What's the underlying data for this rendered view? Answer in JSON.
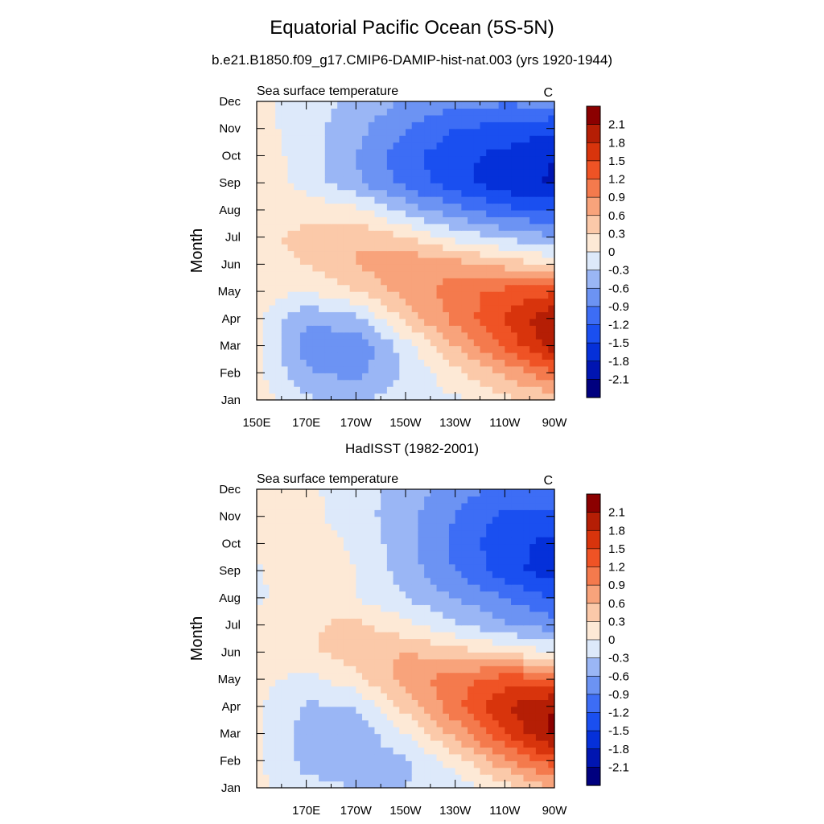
{
  "title": "Equatorial Pacific Ocean (5S-5N)",
  "subtitle": "b.e21.B1850.f09_g17.CMIP6-DAMIP-hist-nat.003 (yrs 1920-1944)",
  "palette": {
    "levels": [
      -2.1,
      -1.8,
      -1.5,
      -1.2,
      -0.9,
      -0.6,
      -0.3,
      0,
      0.3,
      0.6,
      0.9,
      1.2,
      1.5,
      1.8,
      2.1
    ],
    "colors": [
      "#00007f",
      "#0015b1",
      "#0530d9",
      "#1a4ff0",
      "#3d6df5",
      "#6c93f3",
      "#9ab6f5",
      "#c8d8f8",
      "#e7f0fb",
      "#fde4d0",
      "#fbc4a6",
      "#f79b73",
      "#f47343",
      "#ec4a1b",
      "#d52e0a",
      "#b41d05",
      "#8b0000"
    ]
  },
  "chart_data": [
    {
      "type": "heatmap",
      "panel_title": "",
      "left_label": "Sea surface temperature",
      "units": "C",
      "ylabel": "Month",
      "xlabel": "",
      "x_ticks": [
        "150E",
        "170E",
        "170W",
        "150W",
        "130W",
        "110W",
        "90W"
      ],
      "x_lon": [
        150,
        170,
        190,
        210,
        230,
        250,
        270
      ],
      "xlim": [
        150,
        270
      ],
      "y_ticks": [
        "Jan",
        "Feb",
        "Mar",
        "Apr",
        "May",
        "Jun",
        "Jul",
        "Aug",
        "Sep",
        "Oct",
        "Nov",
        "Dec"
      ],
      "lon": [
        150,
        170,
        190,
        210,
        230,
        250,
        270
      ],
      "values": [
        [
          0.15,
          -0.25,
          -0.35,
          -0.15,
          -0.05,
          0.2,
          0.4
        ],
        [
          0.1,
          -0.55,
          -0.7,
          -0.25,
          0.2,
          0.65,
          1.15
        ],
        [
          0.05,
          -0.75,
          -0.85,
          -0.15,
          0.6,
          1.3,
          1.95
        ],
        [
          0.05,
          -0.55,
          -0.4,
          0.4,
          1.0,
          1.5,
          2.1
        ],
        [
          0.15,
          0.0,
          0.3,
          0.7,
          1.05,
          1.3,
          1.45
        ],
        [
          0.15,
          0.3,
          0.6,
          0.9,
          0.75,
          0.5,
          0.2
        ],
        [
          0.2,
          0.4,
          0.6,
          0.3,
          -0.1,
          -0.35,
          -0.55
        ],
        [
          0.15,
          0.2,
          0.1,
          -0.4,
          -0.8,
          -1.1,
          -1.25
        ],
        [
          0.2,
          -0.1,
          -0.55,
          -1.0,
          -1.4,
          -1.7,
          -1.85
        ],
        [
          0.2,
          -0.15,
          -0.6,
          -1.1,
          -1.4,
          -1.6,
          -1.8
        ],
        [
          0.15,
          -0.2,
          -0.5,
          -0.9,
          -1.2,
          -1.3,
          -1.45
        ],
        [
          0.1,
          -0.15,
          -0.35,
          -0.65,
          -0.8,
          -0.85,
          -0.8
        ]
      ],
      "colorbar_labels": [
        "2.1",
        "1.8",
        "1.5",
        "1.2",
        "0.9",
        "0.6",
        "0.3",
        "0",
        "-0.3",
        "-0.6",
        "-0.9",
        "-1.2",
        "-1.5",
        "-1.8",
        "-2.1"
      ]
    },
    {
      "type": "heatmap",
      "panel_title": "HadISST (1982-2001)",
      "left_label": "Sea surface temperature",
      "units": "C",
      "ylabel": "Month",
      "xlabel": "",
      "x_ticks": [
        "170E",
        "170W",
        "150W",
        "130W",
        "110W",
        "90W"
      ],
      "x_lon": [
        170,
        190,
        210,
        230,
        250,
        270
      ],
      "xlim": [
        150,
        270
      ],
      "y_ticks": [
        "Jan",
        "Feb",
        "Mar",
        "Apr",
        "May",
        "Jun",
        "Jul",
        "Aug",
        "Sep",
        "Oct",
        "Nov",
        "Dec"
      ],
      "lon": [
        150,
        170,
        190,
        210,
        230,
        250,
        270
      ],
      "values": [
        [
          0.1,
          -0.2,
          -0.3,
          -0.3,
          -0.2,
          0.15,
          0.6
        ],
        [
          0.05,
          -0.4,
          -0.5,
          -0.35,
          0.15,
          0.8,
          1.4
        ],
        [
          0.05,
          -0.4,
          -0.5,
          0.0,
          0.7,
          1.5,
          2.2
        ],
        [
          0.05,
          -0.35,
          -0.3,
          0.4,
          1.1,
          1.8,
          2.1
        ],
        [
          0.1,
          -0.1,
          0.2,
          0.75,
          1.1,
          1.35,
          1.35
        ],
        [
          0.15,
          0.25,
          0.45,
          0.6,
          0.45,
          0.25,
          0.0
        ],
        [
          0.15,
          0.25,
          0.4,
          0.1,
          -0.25,
          -0.55,
          -0.75
        ],
        [
          -0.05,
          0.15,
          0.0,
          -0.3,
          -0.6,
          -0.9,
          -1.2
        ],
        [
          -0.05,
          0.3,
          0.0,
          -0.45,
          -0.9,
          -1.35,
          -1.7
        ],
        [
          0.1,
          0.15,
          -0.05,
          -0.5,
          -1.0,
          -1.4,
          -1.6
        ],
        [
          0.1,
          0.1,
          -0.15,
          -0.5,
          -0.9,
          -1.3,
          -1.35
        ],
        [
          0.05,
          0.05,
          -0.15,
          -0.45,
          -0.75,
          -1.0,
          -0.9
        ]
      ],
      "colorbar_labels": [
        "2.1",
        "1.8",
        "1.5",
        "1.2",
        "0.9",
        "0.6",
        "0.3",
        "0",
        "-0.3",
        "-0.6",
        "-0.9",
        "-1.2",
        "-1.5",
        "-1.8",
        "-2.1"
      ]
    }
  ]
}
